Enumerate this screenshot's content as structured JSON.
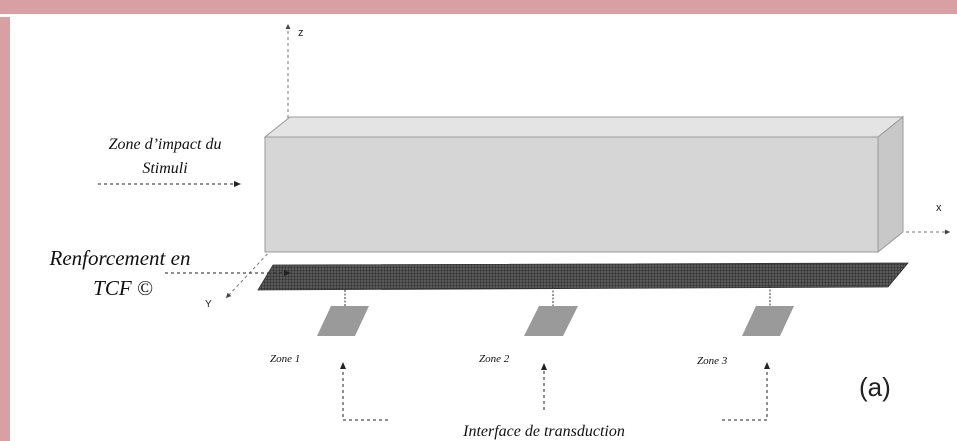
{
  "axes": {
    "x": "x",
    "y": "Y",
    "z": "z"
  },
  "labels": {
    "impact_line1": "Zone d’impact du",
    "impact_line2": "Stimuli",
    "reinforcement_line1": "Renforcement en",
    "reinforcement_line2": "TCF ©",
    "transduction": "Interface de transduction",
    "figure_tag": "(a)"
  },
  "zones": [
    {
      "label": "Zone 1"
    },
    {
      "label": "Zone 2"
    },
    {
      "label": "Zone 3"
    }
  ],
  "colors": {
    "border": "#d9a0a4",
    "beam_face": "#d6d6d6",
    "beam_top": "#e4e4e4",
    "beam_side": "#c8c8c8",
    "mesh": "#3a3a3a",
    "sensor": "#9a9a9a"
  }
}
